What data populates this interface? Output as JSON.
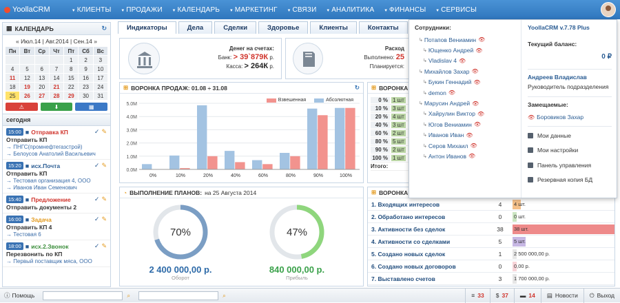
{
  "nav": {
    "brand": "YoollaCRM",
    "items": [
      "КЛИЕНТЫ",
      "ПРОДАЖИ",
      "КАЛЕНДАРЬ",
      "МАРКЕТИНГ",
      "СВЯЗИ",
      "АНАЛИТИКА",
      "ФИНАНСЫ",
      "СЕРВИСЫ"
    ]
  },
  "calendar": {
    "title": "КАЛЕНДАРЬ",
    "nav": "« Июл.14 | Авг.2014 | Сен.14 »",
    "weekdays": [
      "Пн",
      "Вт",
      "Ср",
      "Чт",
      "Пт",
      "Сб",
      "Вс"
    ],
    "days": [
      "",
      "",
      "",
      "",
      "1",
      "2",
      "3",
      "4",
      "5",
      "6",
      "7",
      "8",
      "9",
      "10",
      "11",
      "12",
      "13",
      "14",
      "15",
      "16",
      "17",
      "18",
      "19",
      "20",
      "21",
      "22",
      "23",
      "24",
      "25",
      "26",
      "27",
      "28",
      "29",
      "30",
      "31"
    ],
    "red_days": [
      "11",
      "19",
      "21",
      "26",
      "27",
      "28",
      "29"
    ],
    "today": "25"
  },
  "today": {
    "title": "сегодня",
    "tasks": [
      {
        "time": "15:00",
        "type": "Отправка КП",
        "type_color": "#d0342c",
        "title": "Отправить КП",
        "sub1": "→ ПНГС(промнефтегазстрой)",
        "sub2": "→ Белоусов Анатолий Васильевич"
      },
      {
        "time": "15:20",
        "type": "исх.Почта",
        "type_color": "#2a5c93",
        "title": "Отправить КП",
        "sub1": "→ Тестовая организация 4, ООО",
        "sub2": "→ Иванов Иван Семенович"
      },
      {
        "time": "15:40",
        "type": "Предложение",
        "type_color": "#d0342c",
        "title": "Отправить документы 2",
        "sub1": "",
        "sub2": ""
      },
      {
        "time": "16:00",
        "type": "Задача",
        "type_color": "#e39a1e",
        "title": "Отправить КП 4",
        "sub1": "→ Тестовая 6",
        "sub2": ""
      },
      {
        "time": "18:00",
        "type": "исх.2.Звонок",
        "type_color": "#3a8d3a",
        "title": "Перезвонить по КП",
        "sub1": "→ Первый поставщик мяса, ООО",
        "sub2": ""
      }
    ]
  },
  "tabs": [
    "Индикаторы",
    "Дела",
    "Сделки",
    "Здоровье",
    "Клиенты",
    "Контакты",
    "Ка"
  ],
  "bank": {
    "title": "Денег на счетах:",
    "bank_label": "Банк:",
    "bank_value": "> 39`879К",
    "cash_label": "Касса:",
    "cash_value": "> 264К",
    "unit": "р."
  },
  "expenses": {
    "title": "Расход",
    "done_label": "Выполнено:",
    "done_value": "25",
    "planned_label": "Планируется:"
  },
  "funnel": {
    "title": "ВОРОНКА ПРОДАЖ: 01.08 ÷ 31.08",
    "chart_data": {
      "type": "bar",
      "categories": [
        "0%",
        "10%",
        "20%",
        "40%",
        "60%",
        "80%",
        "90%",
        "100%"
      ],
      "series": [
        {
          "name": "Взвешенная",
          "color": "#f2938e",
          "values": [
            0,
            0.1,
            1.0,
            0.55,
            0.4,
            1.0,
            4.1,
            4.65
          ]
        },
        {
          "name": "Абсолютная",
          "color": "#a3c3e2",
          "values": [
            0.4,
            1.05,
            4.85,
            1.4,
            0.7,
            1.25,
            4.6,
            4.65
          ]
        }
      ],
      "ylim": [
        0,
        5
      ],
      "yticks": [
        "0.0M",
        "1.0M",
        "2.0M",
        "3.0M",
        "4.0M",
        "5.0M"
      ]
    }
  },
  "funnel2": {
    "title": "ВОРОНКА",
    "rows": [
      {
        "pct": "0 %",
        "val": "1 шт"
      },
      {
        "pct": "10 %",
        "val": "3 шт"
      },
      {
        "pct": "20 %",
        "val": "4 шт"
      },
      {
        "pct": "40 %",
        "val": "3 шт"
      },
      {
        "pct": "60 %",
        "val": "2 шт"
      },
      {
        "pct": "80 %",
        "val": "5 шт"
      },
      {
        "pct": "90 %",
        "val": "2 шт"
      },
      {
        "pct": "100 %",
        "val": "1 шт"
      }
    ],
    "total_label": "Итого:"
  },
  "plans": {
    "title": "ВЫПОЛНЕНИЕ ПЛАНОВ:",
    "date": "на 25 Августа 2014",
    "turnover_pct": "70%",
    "turnover_value": "2 400 000,00 р.",
    "turnover_label": "Оборот",
    "profit_pct": "47%",
    "profit_value": "840 000,00 р.",
    "profit_label": "Прибыль",
    "turnover_fraction": 0.7,
    "profit_fraction": 0.47
  },
  "stats": {
    "title": "ВОРОНКА",
    "rows": [
      {
        "label": "1. Входящих интересов",
        "num": "4",
        "bar": "4 шт.",
        "color": "#f5c089",
        "fraction": 0.08
      },
      {
        "label": "2. Обработано интересов",
        "num": "0",
        "bar": "0 шт.",
        "color": "#cbe5c2",
        "fraction": 0.0
      },
      {
        "label": "3. Активности без сделок",
        "num": "38",
        "bar": "38 шт.",
        "color": "#ee8a8a",
        "fraction": 1.0
      },
      {
        "label": "4. Активности со сделками",
        "num": "5",
        "bar": "5 шт.",
        "color": "#c7b8e4",
        "fraction": 0.13
      },
      {
        "label": "5. Создано новых сделок",
        "num": "1",
        "bar": "2 500 000,00 р.",
        "color": "#e6e6e6",
        "fraction": 0.0
      },
      {
        "label": "6. Создано новых договоров",
        "num": "0",
        "bar": "0,00 р.",
        "color": "#f7d3d8",
        "fraction": 0.0
      },
      {
        "label": "7. Выставлено счетов",
        "num": "3",
        "bar": "1 700 000,00 р.",
        "color": "#e6e6e6",
        "fraction": 0.0
      }
    ]
  },
  "dropdown": {
    "employees_title": "Сотрудники:",
    "employees": [
      "Потапов Вениамин",
      "Ющенко Андрей",
      "Vladislav 4",
      "Михайлов Захар",
      "Букин Геннадий",
      "demon",
      "Марусин Андрей",
      "Хайрулин Виктор",
      "Югов Вениамин",
      "Иванов Иван",
      "Серов Михаил",
      "Антон Иванов"
    ],
    "indent": [
      1,
      2,
      2,
      1,
      2,
      2,
      1,
      2,
      2,
      2,
      2,
      2
    ],
    "version": "YoollaCRM v.7.78 Plus",
    "balance_label": "Текущий баланс:",
    "balance_value": "0 ₽",
    "user_name": "Андреев Владислав",
    "user_role": "Руководитель подразделения",
    "replaced_label": "Замещаемые:",
    "replaced": "Боровиков Захар",
    "menu": [
      "Мои данные",
      "Мои настройки",
      "Панель управления",
      "Резервная копия БД"
    ]
  },
  "bottom": {
    "help": "Помощь",
    "c1": "33",
    "c2": "37",
    "c3": "14",
    "news": "Новости",
    "exit": "Выход"
  }
}
